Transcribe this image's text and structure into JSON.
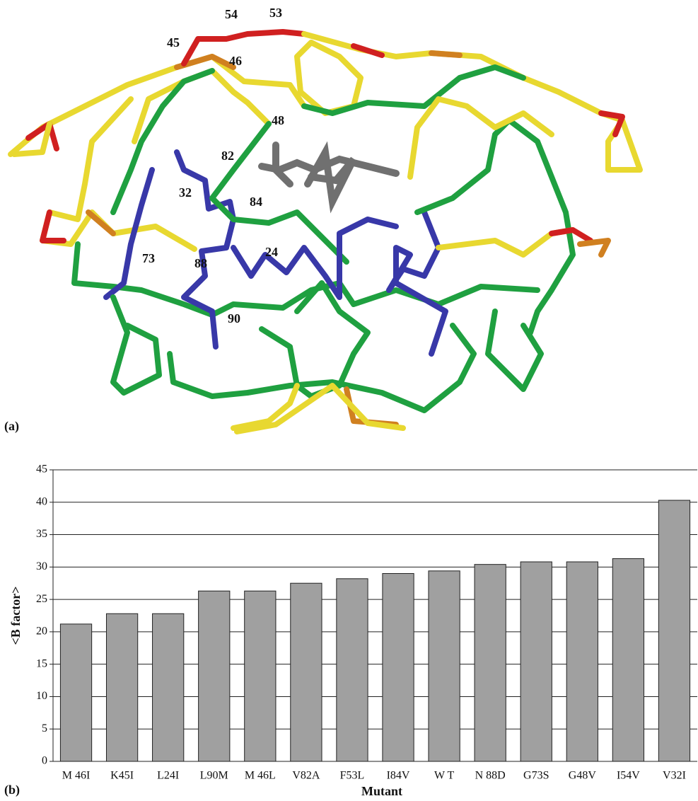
{
  "panel_labels": [
    "(a)",
    "(b)"
  ],
  "structure": {
    "residue_labels": [
      "54",
      "53",
      "45",
      "46",
      "48",
      "82",
      "32",
      "84",
      "73",
      "88",
      "24",
      "90"
    ]
  },
  "chart_data": {
    "type": "bar",
    "categories": [
      "M 46I",
      "K45I",
      "L24I",
      "L90M",
      "M 46L",
      "V82A",
      "F53L",
      "I84V",
      "W T",
      "N 88D",
      "G73S",
      "G48V",
      "I54V",
      "V32I"
    ],
    "values": [
      21.2,
      22.8,
      22.8,
      26.3,
      26.3,
      27.5,
      28.2,
      29.0,
      29.4,
      30.4,
      30.8,
      30.8,
      31.3,
      40.3
    ],
    "color": "#a0a0a0",
    "ylim": [
      0,
      45
    ],
    "yticks": [
      0,
      5,
      10,
      15,
      20,
      25,
      30,
      35,
      40,
      45
    ],
    "grid": true,
    "y_label": "<B factor>",
    "x_label": "Mutant"
  }
}
